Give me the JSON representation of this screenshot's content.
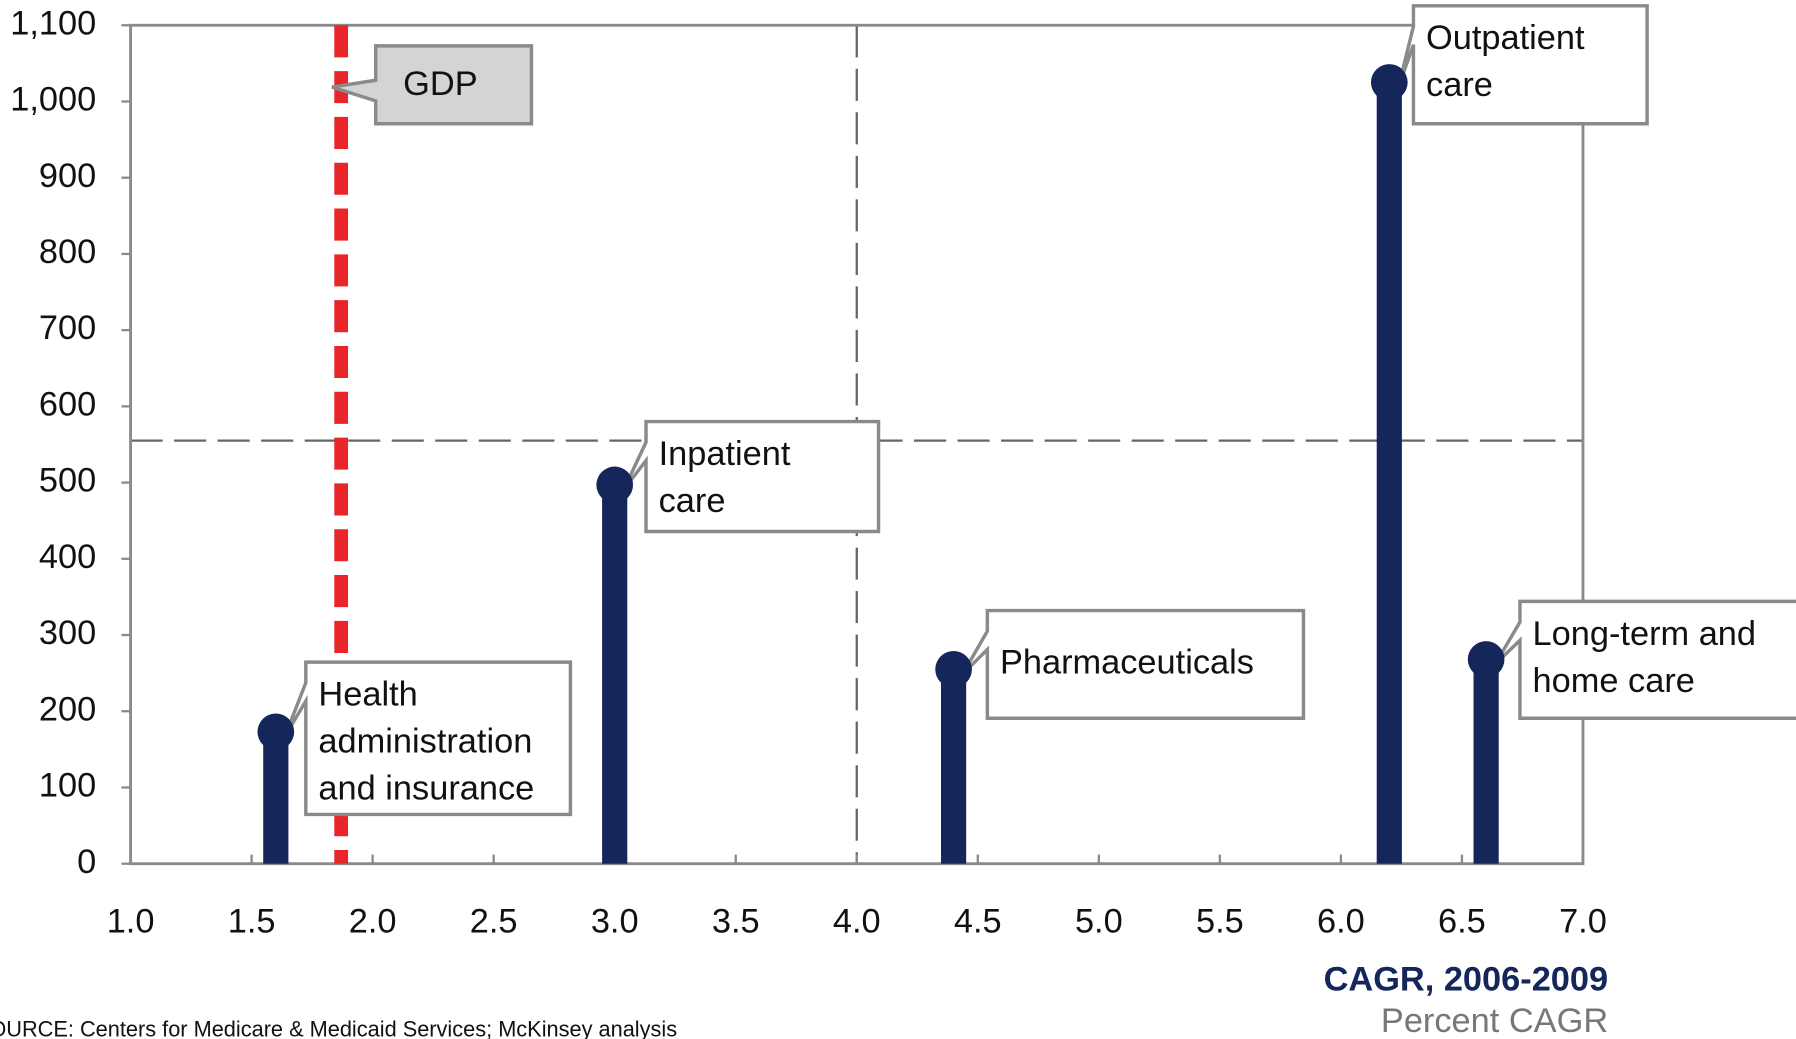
{
  "chart_data": {
    "type": "lollipop",
    "x": [
      1.6,
      3.0,
      4.4,
      6.2,
      6.6
    ],
    "values": [
      173,
      497,
      255,
      1025,
      268
    ],
    "labels": [
      [
        "Health",
        "administration",
        "and insurance"
      ],
      [
        "Inpatient",
        "care"
      ],
      [
        "Pharmaceuticals"
      ],
      [
        "Outpatient",
        "care"
      ],
      [
        "Long-term and",
        "home care"
      ]
    ],
    "color": "#15265a",
    "xlim": [
      1.0,
      7.0
    ],
    "ylim": [
      0,
      1100
    ],
    "xticks": [
      {
        "value": 1.0,
        "label": "1.0"
      },
      1.5,
      {
        "value": 2.0,
        "label": "2.0"
      },
      2.5,
      {
        "value": 3.0,
        "label": "3.0"
      },
      3.5,
      {
        "value": 4.0,
        "label": "4.0"
      },
      4.5,
      {
        "value": 5.0,
        "label": "5.0"
      },
      5.5,
      {
        "value": 6.0,
        "label": "6.0"
      },
      6.5,
      {
        "value": 7.0,
        "label": "7.0"
      }
    ],
    "yticks": [
      0,
      100,
      200,
      300,
      400,
      500,
      600,
      700,
      800,
      900,
      {
        "value": 1000,
        "label": "1,000"
      },
      {
        "value": 1100,
        "label": "1,100"
      }
    ],
    "gdp": {
      "label": "GDP",
      "x": 1.87,
      "color": "#e8262a"
    },
    "reference_lines": {
      "x": 4.0,
      "y": 555
    },
    "xlabel": "CAGR, 2006-2009",
    "xlabel_unit": "Percent CAGR",
    "source": "SOURCE: Centers for Medicare & Medicaid Services; McKinsey analysis"
  }
}
